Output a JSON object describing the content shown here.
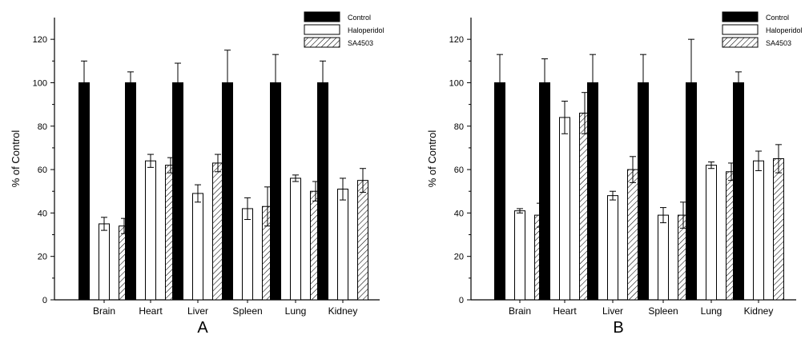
{
  "chart_data": [
    {
      "type": "bar",
      "panel_label": "A",
      "categories": [
        "Brain",
        "Heart",
        "Liver",
        "Spleen",
        "Lung",
        "Kidney"
      ],
      "ylabel": "% of Control",
      "xlabel": "",
      "ylim": [
        0,
        130
      ],
      "yticks": [
        0,
        20,
        40,
        60,
        80,
        100,
        120
      ],
      "grid": false,
      "legend_position": "top-right",
      "series": [
        {
          "name": "Control",
          "fill": "solid-black",
          "values": [
            100,
            100,
            100,
            100,
            100,
            100
          ],
          "errors": [
            10,
            5,
            9,
            15,
            13,
            10
          ]
        },
        {
          "name": "Haloperidol",
          "fill": "white",
          "values": [
            35,
            64,
            49,
            42,
            56,
            51
          ],
          "errors": [
            3,
            3,
            4,
            5,
            1.5,
            5
          ]
        },
        {
          "name": "SA4503",
          "fill": "hatched",
          "values": [
            34,
            62,
            63,
            43,
            50,
            55
          ],
          "errors": [
            3.5,
            3.5,
            4,
            9,
            4.5,
            5.5
          ]
        }
      ]
    },
    {
      "type": "bar",
      "panel_label": "B",
      "categories": [
        "Brain",
        "Heart",
        "Liver",
        "Spleen",
        "Lung",
        "Kidney"
      ],
      "ylabel": "% of Control",
      "xlabel": "",
      "ylim": [
        0,
        130
      ],
      "yticks": [
        0,
        20,
        40,
        60,
        80,
        100,
        120
      ],
      "grid": false,
      "legend_position": "top-right",
      "series": [
        {
          "name": "Control",
          "fill": "solid-black",
          "values": [
            100,
            100,
            100,
            100,
            100,
            100
          ],
          "errors": [
            13,
            11,
            13,
            13,
            20,
            5
          ]
        },
        {
          "name": "Haloperidol",
          "fill": "white",
          "values": [
            41,
            84,
            48,
            39,
            62,
            64
          ],
          "errors": [
            1,
            7.5,
            2,
            3.5,
            1.5,
            4.5
          ]
        },
        {
          "name": "SA4503",
          "fill": "hatched",
          "values": [
            39,
            86,
            60,
            39,
            59,
            65
          ],
          "errors": [
            5.5,
            9.5,
            6,
            6,
            4,
            6.5
          ]
        }
      ]
    }
  ]
}
